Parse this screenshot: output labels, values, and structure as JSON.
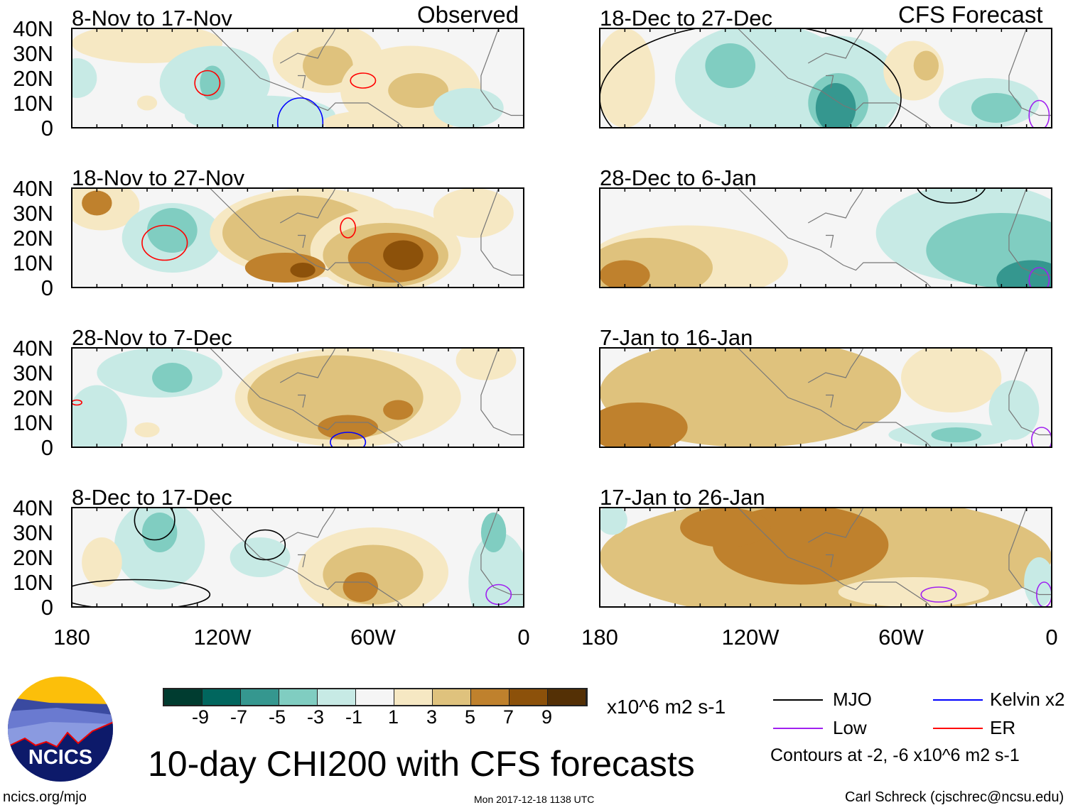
{
  "chart_data": {
    "type": "heatmap",
    "title": "10-day CHI200 with CFS forecasts",
    "units": "x10^6 m2 s-1",
    "lat_ticks": [
      "40N",
      "30N",
      "20N",
      "10N",
      "0"
    ],
    "lon_ticks": [
      "180",
      "120W",
      "60W",
      "0"
    ],
    "lat_range": [
      0,
      40
    ],
    "lon_range": [
      -180,
      0
    ],
    "section_labels": {
      "left": "Observed",
      "right": "CFS Forecast"
    },
    "colorbar": {
      "levels": [
        "-9",
        "-7",
        "-5",
        "-3",
        "-1",
        "1",
        "3",
        "5",
        "7",
        "9"
      ],
      "colors": [
        "#003c30",
        "#01665e",
        "#35978f",
        "#80cdc1",
        "#c7eae5",
        "#f5f5f5",
        "#f6e8c3",
        "#dfc27d",
        "#bf812d",
        "#8c510a",
        "#543005"
      ]
    },
    "panels": [
      {
        "title": "8-Nov to 17-Nov",
        "col": 0,
        "row": 0,
        "anoms": [
          [
            -150,
            34,
            30,
            8,
            2
          ],
          [
            -178,
            20,
            8,
            8,
            -2
          ],
          [
            -123,
            18,
            22,
            15,
            -2
          ],
          [
            -124,
            18,
            5,
            7,
            -4
          ],
          [
            -105,
            5,
            30,
            8,
            -2
          ],
          [
            -78,
            28,
            22,
            14,
            2
          ],
          [
            -78,
            25,
            10,
            8,
            4
          ],
          [
            -45,
            15,
            28,
            18,
            2
          ],
          [
            -42,
            15,
            12,
            7,
            4
          ],
          [
            -60,
            2,
            20,
            5,
            2
          ],
          [
            -22,
            8,
            14,
            8,
            -2
          ],
          [
            -150,
            10,
            4,
            3,
            2
          ]
        ],
        "contours": [
          [
            -126,
            18,
            5,
            5,
            "ER"
          ],
          [
            -64,
            19,
            5,
            3,
            "ER"
          ],
          [
            -89,
            2,
            9,
            10,
            "Kelvin"
          ]
        ]
      },
      {
        "title": "18-Nov to 27-Nov",
        "col": 0,
        "row": 1,
        "anoms": [
          [
            -168,
            33,
            15,
            10,
            2
          ],
          [
            -170,
            34,
            6,
            5,
            6
          ],
          [
            -140,
            20,
            20,
            14,
            -2
          ],
          [
            -140,
            23,
            10,
            9,
            -4
          ],
          [
            -85,
            22,
            40,
            18,
            2
          ],
          [
            -90,
            22,
            30,
            15,
            4
          ],
          [
            -55,
            15,
            30,
            17,
            2
          ],
          [
            -55,
            13,
            25,
            13,
            4
          ],
          [
            -52,
            12,
            18,
            10,
            6
          ],
          [
            -48,
            13,
            8,
            6,
            8
          ],
          [
            -95,
            8,
            16,
            6,
            6
          ],
          [
            -88,
            7,
            5,
            3,
            8
          ],
          [
            -20,
            30,
            16,
            10,
            2
          ]
        ],
        "contours": [
          [
            -143,
            18,
            9,
            7,
            "ER"
          ],
          [
            -70,
            24,
            3,
            4,
            "ER"
          ]
        ]
      },
      {
        "title": "28-Nov to 7-Dec",
        "col": 0,
        "row": 2,
        "anoms": [
          [
            -145,
            30,
            25,
            10,
            -2
          ],
          [
            -140,
            28,
            8,
            6,
            -4
          ],
          [
            -170,
            10,
            12,
            15,
            -2
          ],
          [
            -70,
            20,
            45,
            20,
            2
          ],
          [
            -75,
            20,
            35,
            17,
            4
          ],
          [
            -50,
            15,
            6,
            4,
            6
          ],
          [
            -70,
            8,
            12,
            5,
            6
          ],
          [
            -15,
            35,
            12,
            8,
            2
          ],
          [
            -150,
            7,
            5,
            3,
            2
          ]
        ],
        "contours": [
          [
            -178,
            18,
            2,
            1,
            "ER"
          ],
          [
            -70,
            2,
            7,
            4,
            "Kelvin"
          ]
        ]
      },
      {
        "title": "8-Dec to 17-Dec",
        "col": 0,
        "row": 3,
        "anoms": [
          [
            -145,
            25,
            18,
            18,
            -2
          ],
          [
            -145,
            30,
            7,
            8,
            -4
          ],
          [
            -168,
            18,
            8,
            10,
            2
          ],
          [
            -105,
            20,
            12,
            8,
            -2
          ],
          [
            -60,
            14,
            30,
            18,
            2
          ],
          [
            -60,
            13,
            20,
            12,
            4
          ],
          [
            -65,
            8,
            7,
            6,
            6
          ],
          [
            -10,
            10,
            12,
            20,
            -2
          ],
          [
            -12,
            30,
            5,
            8,
            -4
          ]
        ],
        "contours": [
          [
            -147,
            35,
            8,
            8,
            "MJO"
          ],
          [
            -103,
            25,
            8,
            6,
            "MJO"
          ],
          [
            -155,
            5,
            30,
            6,
            "MJO"
          ],
          [
            -10,
            5,
            5,
            4,
            "Low"
          ]
        ]
      },
      {
        "title": "18-Dec to 27-Dec",
        "col": 1,
        "row": 0,
        "anoms": [
          [
            -170,
            20,
            12,
            20,
            2
          ],
          [
            -115,
            20,
            35,
            22,
            -2
          ],
          [
            -128,
            25,
            10,
            9,
            -4
          ],
          [
            -85,
            15,
            25,
            22,
            -2
          ],
          [
            -85,
            10,
            12,
            12,
            -4
          ],
          [
            -86,
            8,
            8,
            10,
            -6
          ],
          [
            -55,
            23,
            12,
            12,
            2
          ],
          [
            -50,
            25,
            5,
            6,
            4
          ],
          [
            -25,
            10,
            20,
            10,
            -2
          ],
          [
            -22,
            8,
            10,
            6,
            -4
          ]
        ],
        "contours": [
          [
            -120,
            12,
            60,
            30,
            "MJO"
          ],
          [
            -5,
            5,
            4,
            6,
            "Low"
          ]
        ]
      },
      {
        "title": "28-Dec to 6-Jan",
        "col": 1,
        "row": 1,
        "anoms": [
          [
            -145,
            10,
            40,
            15,
            2
          ],
          [
            -160,
            8,
            25,
            12,
            4
          ],
          [
            -170,
            5,
            10,
            6,
            6
          ],
          [
            -30,
            22,
            40,
            20,
            -2
          ],
          [
            -20,
            15,
            30,
            15,
            -4
          ],
          [
            -8,
            3,
            14,
            8,
            -6
          ]
        ],
        "contours": [
          [
            -40,
            42,
            14,
            8,
            "MJO"
          ],
          [
            -5,
            3,
            4,
            5,
            "Low"
          ]
        ]
      },
      {
        "title": "7-Jan to 16-Jan",
        "col": 1,
        "row": 2,
        "anoms": [
          [
            -120,
            22,
            60,
            22,
            4
          ],
          [
            -165,
            8,
            20,
            10,
            6
          ],
          [
            -40,
            28,
            20,
            14,
            2
          ],
          [
            -15,
            15,
            10,
            12,
            -2
          ],
          [
            -40,
            5,
            25,
            5,
            -2
          ],
          [
            -38,
            5,
            10,
            3,
            -4
          ]
        ],
        "contours": [
          [
            -4,
            3,
            4,
            5,
            "Low"
          ]
        ]
      },
      {
        "title": "17-Jan to 26-Jan",
        "col": 1,
        "row": 3,
        "anoms": [
          [
            -90,
            20,
            90,
            25,
            4
          ],
          [
            -100,
            25,
            35,
            16,
            6
          ],
          [
            -130,
            32,
            18,
            8,
            6
          ],
          [
            -175,
            35,
            6,
            6,
            -2
          ],
          [
            -55,
            6,
            30,
            6,
            2
          ],
          [
            -5,
            10,
            6,
            10,
            -2
          ]
        ],
        "contours": [
          [
            -45,
            5,
            7,
            3,
            "Low"
          ],
          [
            -3,
            5,
            3,
            5,
            "Low"
          ]
        ]
      }
    ],
    "legend": [
      {
        "label": "MJO",
        "color": "#000000"
      },
      {
        "label": "Kelvin x2",
        "color": "#0000ff"
      },
      {
        "label": "Low",
        "color": "#a020f0"
      },
      {
        "label": "ER",
        "color": "#ff0000"
      }
    ],
    "contour_note": "Contours at -2, -6 x10^6 m2 s-1"
  },
  "footer": {
    "logo_text": "NCICS",
    "url": "ncics.org/mjo",
    "timestamp": "Mon 2017-12-18 1138 UTC",
    "credit": "Carl Schreck (cjschrec@ncsu.edu)"
  }
}
